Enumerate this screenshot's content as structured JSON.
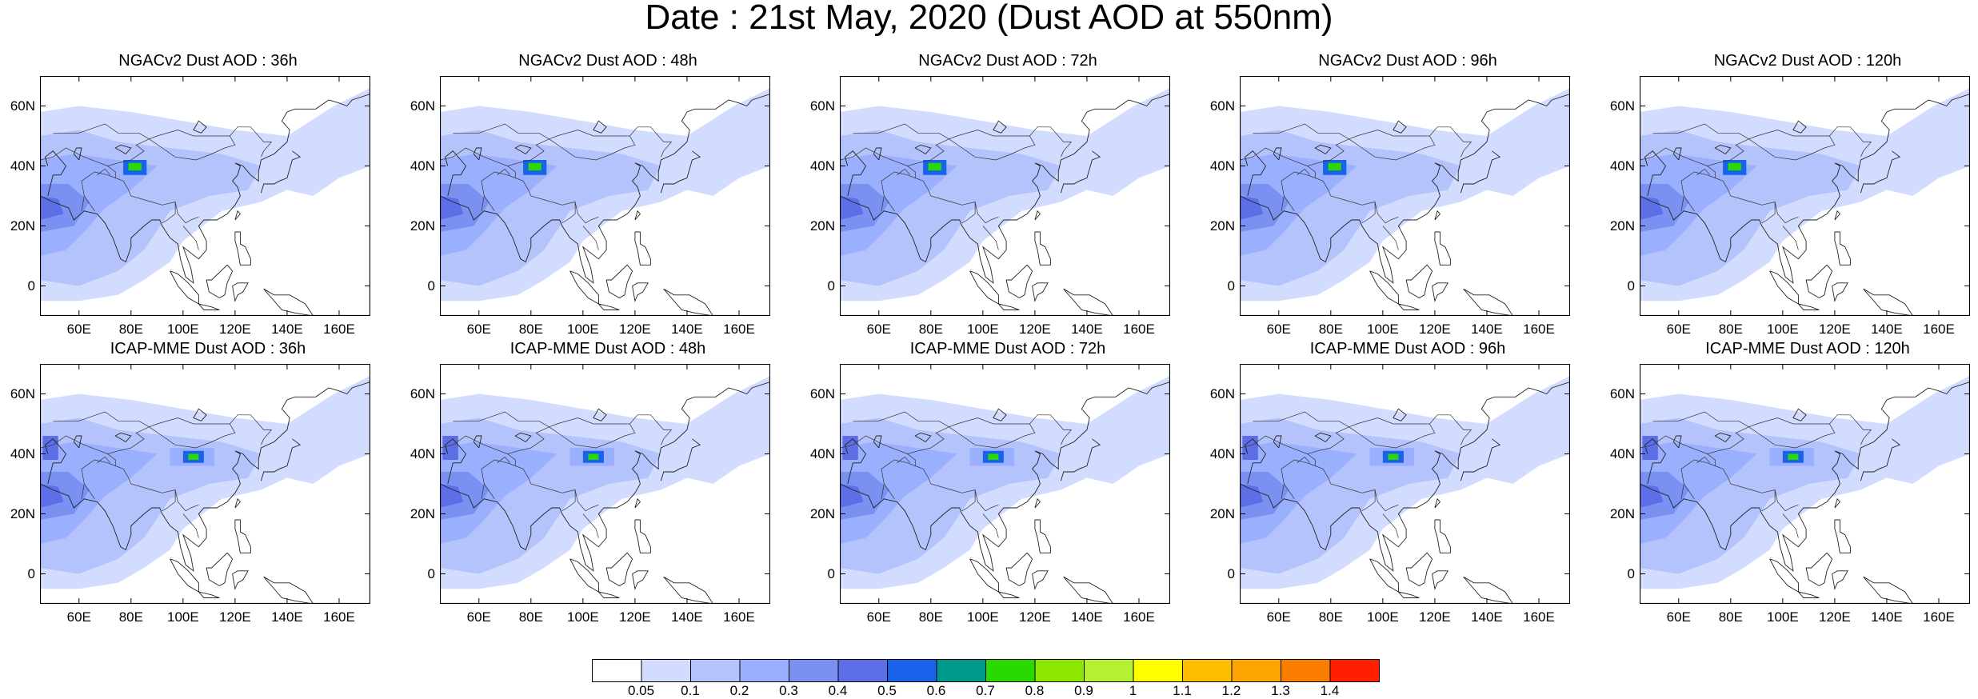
{
  "title": "Date : 21st May, 2020 (Dust AOD at 550nm)",
  "panels": [
    {
      "title": "NGACv2 Dust AOD : 36h",
      "row": 0,
      "col": 0,
      "model": "NGACv2",
      "lead_h": 36
    },
    {
      "title": "NGACv2 Dust AOD : 48h",
      "row": 0,
      "col": 1,
      "model": "NGACv2",
      "lead_h": 48
    },
    {
      "title": "NGACv2 Dust AOD : 72h",
      "row": 0,
      "col": 2,
      "model": "NGACv2",
      "lead_h": 72
    },
    {
      "title": "NGACv2 Dust AOD : 96h",
      "row": 0,
      "col": 3,
      "model": "NGACv2",
      "lead_h": 96
    },
    {
      "title": "NGACv2 Dust AOD : 120h",
      "row": 0,
      "col": 4,
      "model": "NGACv2",
      "lead_h": 120
    },
    {
      "title": "ICAP-MME Dust AOD : 36h",
      "row": 1,
      "col": 0,
      "model": "ICAP-MME",
      "lead_h": 36
    },
    {
      "title": "ICAP-MME Dust AOD : 48h",
      "row": 1,
      "col": 1,
      "model": "ICAP-MME",
      "lead_h": 48
    },
    {
      "title": "ICAP-MME Dust AOD : 72h",
      "row": 1,
      "col": 2,
      "model": "ICAP-MME",
      "lead_h": 72
    },
    {
      "title": "ICAP-MME Dust AOD : 96h",
      "row": 1,
      "col": 3,
      "model": "ICAP-MME",
      "lead_h": 96
    },
    {
      "title": "ICAP-MME Dust AOD : 120h",
      "row": 1,
      "col": 4,
      "model": "ICAP-MME",
      "lead_h": 120
    }
  ],
  "map_extent": {
    "lon": [
      45,
      172
    ],
    "lat": [
      -10,
      70
    ]
  },
  "lat_ticks": [
    {
      "label": "60N",
      "lat": 60
    },
    {
      "label": "40N",
      "lat": 40
    },
    {
      "label": "20N",
      "lat": 20
    },
    {
      "label": "0",
      "lat": 0
    }
  ],
  "lon_ticks": [
    {
      "label": "60E",
      "lon": 60
    },
    {
      "label": "80E",
      "lon": 80
    },
    {
      "label": "100E",
      "lon": 100
    },
    {
      "label": "120E",
      "lon": 120
    },
    {
      "label": "140E",
      "lon": 140
    },
    {
      "label": "160E",
      "lon": 160
    }
  ],
  "colorbar": {
    "labels": [
      "0.05",
      "0.1",
      "0.2",
      "0.3",
      "0.4",
      "0.5",
      "0.6",
      "0.7",
      "0.8",
      "0.9",
      "1",
      "1.1",
      "1.2",
      "1.3",
      "1.4"
    ],
    "colors": [
      "#ffffff",
      "#d2dcff",
      "#b4c3fb",
      "#9bafff",
      "#7b91f2",
      "#5e6ee6",
      "#1963eb",
      "#009a8c",
      "#2ad900",
      "#8be600",
      "#b5f032",
      "#ffff00",
      "#fdbe00",
      "#fda500",
      "#fa7d00",
      "#ff1e00"
    ]
  }
}
